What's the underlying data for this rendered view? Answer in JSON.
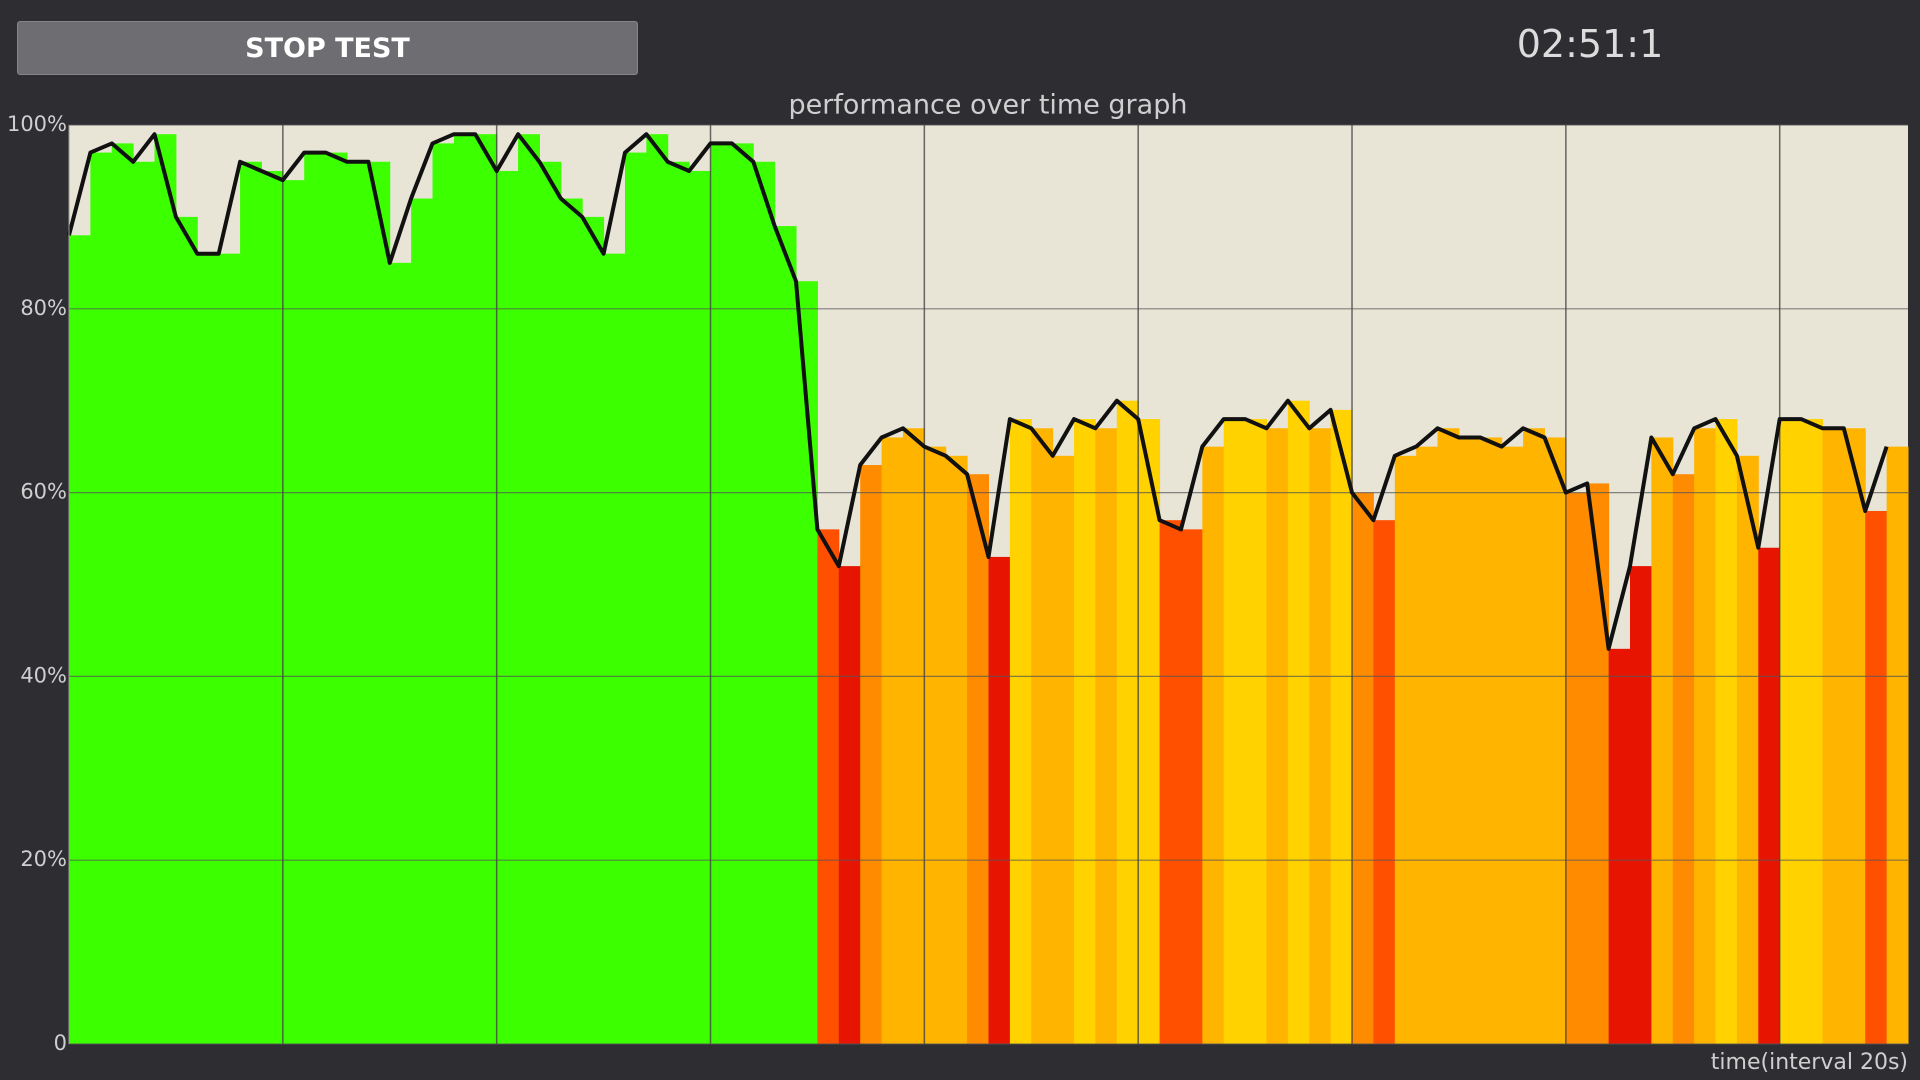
{
  "header": {
    "button": "STOP TEST",
    "timer": "02:51:1"
  },
  "chart_data": {
    "type": "area",
    "title": "performance over time graph",
    "x_label": "time(interval 20s)",
    "x": [
      0,
      2,
      4,
      6,
      8,
      10,
      12,
      14,
      16,
      18,
      20,
      22,
      24,
      26,
      28,
      30,
      32,
      34,
      36,
      38,
      40,
      42,
      44,
      46,
      48,
      50,
      52,
      54,
      56,
      58,
      60,
      62,
      64,
      66,
      68,
      70,
      72,
      74,
      76,
      78,
      80,
      82,
      84,
      86,
      88,
      90,
      92,
      94,
      96,
      98,
      100,
      102,
      104,
      106,
      108,
      110,
      112,
      114,
      116,
      118,
      120,
      122,
      124,
      126,
      128,
      130,
      132,
      134,
      136,
      138,
      140,
      142,
      144,
      146,
      148,
      150,
      152,
      154,
      156,
      158,
      160,
      162,
      164,
      166,
      168,
      170
    ],
    "values": [
      88,
      97,
      98,
      96,
      99,
      90,
      86,
      86,
      96,
      95,
      94,
      97,
      97,
      96,
      96,
      85,
      92,
      98,
      99,
      99,
      95,
      99,
      96,
      92,
      90,
      86,
      97,
      99,
      96,
      95,
      98,
      98,
      96,
      89,
      83,
      56,
      52,
      63,
      66,
      67,
      65,
      64,
      62,
      53,
      68,
      67,
      64,
      68,
      67,
      70,
      68,
      57,
      56,
      65,
      68,
      68,
      67,
      70,
      67,
      69,
      60,
      57,
      64,
      65,
      67,
      66,
      66,
      65,
      67,
      66,
      60,
      61,
      43,
      52,
      66,
      62,
      67,
      68,
      64,
      54,
      68,
      68,
      67,
      67,
      58,
      65
    ],
    "colors": [
      "#3cff00",
      "#3cff00",
      "#3cff00",
      "#3cff00",
      "#3cff00",
      "#3cff00",
      "#3cff00",
      "#3cff00",
      "#3cff00",
      "#3cff00",
      "#3cff00",
      "#3cff00",
      "#3cff00",
      "#3cff00",
      "#3cff00",
      "#3cff00",
      "#3cff00",
      "#3cff00",
      "#3cff00",
      "#3cff00",
      "#3cff00",
      "#3cff00",
      "#3cff00",
      "#3cff00",
      "#3cff00",
      "#3cff00",
      "#3cff00",
      "#3cff00",
      "#3cff00",
      "#3cff00",
      "#3cff00",
      "#3cff00",
      "#3cff00",
      "#3cff00",
      "#3cff00",
      "#ff5000",
      "#e61400",
      "#ff8c00",
      "#ffb400",
      "#ffb400",
      "#ffb400",
      "#ffb400",
      "#ff8c00",
      "#e61400",
      "#ffd200",
      "#ffb400",
      "#ffb400",
      "#ffd200",
      "#ffb400",
      "#ffd200",
      "#ffd200",
      "#ff5000",
      "#ff5000",
      "#ffb400",
      "#ffd200",
      "#ffd200",
      "#ffb400",
      "#ffd200",
      "#ffb400",
      "#ffd200",
      "#ff8c00",
      "#ff5000",
      "#ffb400",
      "#ffb400",
      "#ffb400",
      "#ffb400",
      "#ffb400",
      "#ffb400",
      "#ffb400",
      "#ffb400",
      "#ff8c00",
      "#ff8c00",
      "#e61400",
      "#e61400",
      "#ffb400",
      "#ff8c00",
      "#ffb400",
      "#ffd200",
      "#ffb400",
      "#e61400",
      "#ffd200",
      "#ffd200",
      "#ffb400",
      "#ffb400",
      "#ff5000",
      "#ffb400"
    ],
    "line_color": "#111111",
    "xlim": [
      0,
      172
    ],
    "xticks": [
      20,
      40,
      60,
      80,
      100,
      120,
      140,
      160
    ],
    "ylim": [
      0,
      100
    ],
    "yticks": [
      0,
      {
        "value": 20,
        "label": "20%"
      },
      {
        "value": 40,
        "label": "40%"
      },
      {
        "value": 60,
        "label": "60%"
      },
      {
        "value": 80,
        "label": "80%"
      },
      {
        "value": 100,
        "label": "100%"
      }
    ],
    "grid": true
  }
}
